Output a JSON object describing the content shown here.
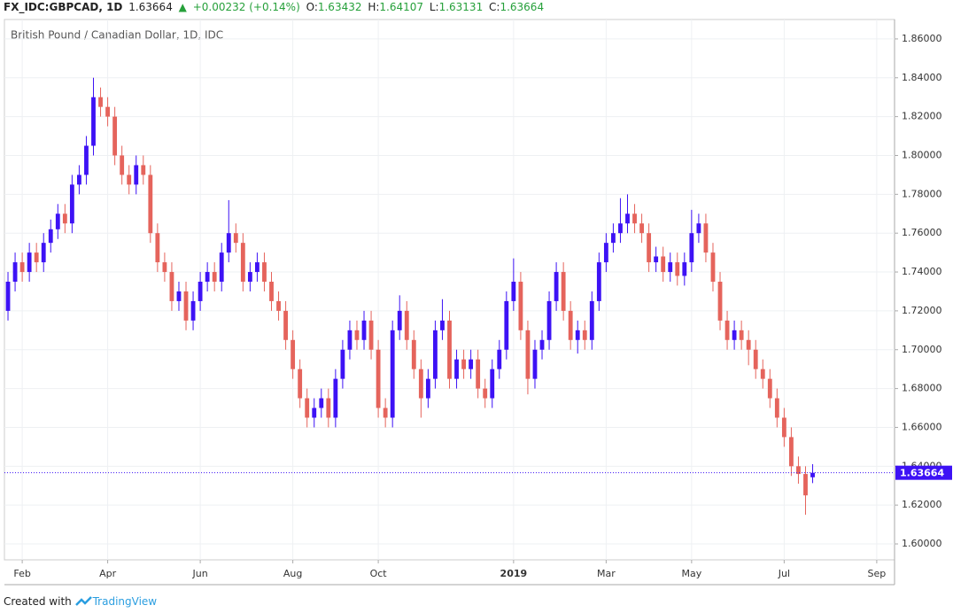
{
  "header": {
    "symbol": "FX_IDC:GBPCAD, 1D",
    "change": "+0.00232 (+0.14%)",
    "ohlc_labels": [
      "O:",
      "H:",
      "L:",
      "C:"
    ]
  },
  "footer": {
    "created_with": "Created with",
    "brand": "TradingView"
  },
  "chart_data": {
    "type": "candlestick",
    "title": "British Pound / Canadian Dollar, 1D, IDC",
    "up_color": "#3d12f5",
    "down_color": "#e5645c",
    "grid": true,
    "ylim": [
      1.5918,
      1.87
    ],
    "yticks": [
      {
        "value": 1.6,
        "label": "1.60000"
      },
      {
        "value": 1.62,
        "label": "1.62000"
      },
      {
        "value": 1.64,
        "label": "1.64000"
      },
      {
        "value": 1.66,
        "label": "1.66000"
      },
      {
        "value": 1.68,
        "label": "1.68000"
      },
      {
        "value": 1.7,
        "label": "1.70000"
      },
      {
        "value": 1.72,
        "label": "1.72000"
      },
      {
        "value": 1.74,
        "label": "1.74000"
      },
      {
        "value": 1.76,
        "label": "1.76000"
      },
      {
        "value": 1.78,
        "label": "1.78000"
      },
      {
        "value": 1.8,
        "label": "1.80000"
      },
      {
        "value": 1.82,
        "label": "1.82000"
      },
      {
        "value": 1.84,
        "label": "1.84000"
      },
      {
        "value": 1.86,
        "label": "1.86000"
      }
    ],
    "categories": [
      null,
      null,
      "Feb",
      null,
      null,
      null,
      null,
      null,
      null,
      null,
      null,
      null,
      null,
      null,
      "Apr",
      null,
      null,
      null,
      null,
      null,
      null,
      null,
      null,
      null,
      null,
      null,
      null,
      "Jun",
      null,
      null,
      null,
      null,
      null,
      null,
      null,
      null,
      null,
      null,
      null,
      null,
      "Aug",
      null,
      null,
      null,
      null,
      null,
      null,
      null,
      null,
      null,
      null,
      null,
      "Oct",
      null,
      null,
      null,
      null,
      null,
      null,
      null,
      null,
      null,
      null,
      null,
      null,
      null,
      null,
      null,
      null,
      null,
      null,
      "2019",
      null,
      null,
      null,
      null,
      null,
      null,
      null,
      null,
      null,
      null,
      null,
      null,
      "Mar",
      null,
      null,
      null,
      null,
      null,
      null,
      null,
      null,
      null,
      null,
      null,
      "May",
      null,
      null,
      null,
      null,
      null,
      null,
      null,
      null,
      null,
      null,
      null,
      null,
      "Jul",
      null,
      null,
      null,
      null,
      null,
      null,
      null,
      null,
      null,
      null,
      null,
      null,
      "Sep",
      null,
      null
    ],
    "open": [
      1.72,
      1.735,
      1.745,
      1.74,
      1.75,
      1.745,
      1.755,
      1.762,
      1.77,
      1.765,
      1.785,
      1.79,
      1.805,
      1.83,
      1.825,
      1.82,
      1.8,
      1.79,
      1.785,
      1.795,
      1.79,
      1.76,
      1.745,
      1.74,
      1.725,
      1.73,
      1.715,
      1.725,
      1.735,
      1.74,
      1.735,
      1.75,
      1.76,
      1.755,
      1.735,
      1.74,
      1.745,
      1.735,
      1.725,
      1.72,
      1.705,
      1.69,
      1.675,
      1.665,
      1.67,
      1.675,
      1.665,
      1.685,
      1.7,
      1.71,
      1.705,
      1.715,
      1.7,
      1.67,
      1.665,
      1.71,
      1.72,
      1.705,
      1.69,
      1.675,
      1.685,
      1.71,
      1.715,
      1.685,
      1.695,
      1.69,
      1.695,
      1.68,
      1.675,
      1.69,
      1.7,
      1.725,
      1.735,
      1.71,
      1.685,
      1.7,
      1.705,
      1.725,
      1.74,
      1.72,
      1.705,
      1.71,
      1.705,
      1.725,
      1.745,
      1.755,
      1.76,
      1.765,
      1.77,
      1.765,
      1.76,
      1.745,
      1.748,
      1.74,
      1.745,
      1.738,
      1.745,
      1.76,
      1.765,
      1.75,
      1.735,
      1.715,
      1.705,
      1.71,
      1.705,
      1.7,
      1.69,
      1.685,
      1.675,
      1.665,
      1.655,
      1.64,
      1.636,
      1.63432,
      null,
      null,
      null,
      null,
      null,
      null,
      null,
      null,
      null,
      null,
      null
    ],
    "high": [
      1.74,
      1.75,
      1.75,
      1.755,
      1.755,
      1.76,
      1.767,
      1.775,
      1.775,
      1.79,
      1.795,
      1.81,
      1.84,
      1.835,
      1.83,
      1.825,
      1.805,
      1.795,
      1.8,
      1.8,
      1.795,
      1.765,
      1.75,
      1.745,
      1.735,
      1.735,
      1.73,
      1.74,
      1.745,
      1.745,
      1.755,
      1.777,
      1.765,
      1.76,
      1.745,
      1.75,
      1.75,
      1.74,
      1.73,
      1.725,
      1.71,
      1.695,
      1.68,
      1.675,
      1.68,
      1.68,
      1.69,
      1.705,
      1.715,
      1.715,
      1.72,
      1.72,
      1.705,
      1.675,
      1.715,
      1.728,
      1.725,
      1.71,
      1.695,
      1.69,
      1.715,
      1.726,
      1.72,
      1.7,
      1.7,
      1.7,
      1.7,
      1.685,
      1.695,
      1.705,
      1.73,
      1.747,
      1.74,
      1.715,
      1.705,
      1.71,
      1.73,
      1.745,
      1.745,
      1.725,
      1.715,
      1.715,
      1.73,
      1.75,
      1.76,
      1.765,
      1.778,
      1.78,
      1.775,
      1.77,
      1.765,
      1.753,
      1.753,
      1.75,
      1.75,
      1.75,
      1.772,
      1.77,
      1.77,
      1.755,
      1.74,
      1.72,
      1.715,
      1.715,
      1.71,
      1.705,
      1.695,
      1.69,
      1.68,
      1.67,
      1.66,
      1.645,
      1.64,
      1.64107,
      null,
      null,
      null,
      null,
      null,
      null,
      null,
      null,
      null,
      null,
      null
    ],
    "low": [
      1.715,
      1.73,
      1.735,
      1.735,
      1.74,
      1.74,
      1.75,
      1.757,
      1.76,
      1.76,
      1.78,
      1.785,
      1.8,
      1.82,
      1.815,
      1.795,
      1.785,
      1.78,
      1.78,
      1.785,
      1.755,
      1.74,
      1.735,
      1.72,
      1.72,
      1.71,
      1.71,
      1.72,
      1.73,
      1.73,
      1.73,
      1.745,
      1.75,
      1.73,
      1.73,
      1.735,
      1.73,
      1.72,
      1.715,
      1.7,
      1.685,
      1.67,
      1.66,
      1.66,
      1.665,
      1.66,
      1.66,
      1.68,
      1.695,
      1.7,
      1.7,
      1.695,
      1.665,
      1.66,
      1.66,
      1.705,
      1.7,
      1.685,
      1.665,
      1.67,
      1.68,
      1.705,
      1.68,
      1.68,
      1.685,
      1.685,
      1.675,
      1.67,
      1.67,
      1.685,
      1.695,
      1.72,
      1.705,
      1.677,
      1.68,
      1.695,
      1.7,
      1.72,
      1.715,
      1.7,
      1.698,
      1.7,
      1.7,
      1.72,
      1.74,
      1.75,
      1.755,
      1.76,
      1.76,
      1.755,
      1.74,
      1.74,
      1.735,
      1.735,
      1.733,
      1.733,
      1.74,
      1.755,
      1.745,
      1.73,
      1.71,
      1.7,
      1.7,
      1.7,
      1.692,
      1.685,
      1.68,
      1.67,
      1.66,
      1.65,
      1.635,
      1.631,
      1.615,
      1.63131,
      null,
      null,
      null,
      null,
      null,
      null,
      null,
      null,
      null,
      null,
      null
    ],
    "close": [
      1.735,
      1.745,
      1.74,
      1.75,
      1.745,
      1.755,
      1.762,
      1.77,
      1.765,
      1.785,
      1.79,
      1.805,
      1.83,
      1.825,
      1.82,
      1.8,
      1.79,
      1.785,
      1.795,
      1.79,
      1.76,
      1.745,
      1.74,
      1.725,
      1.73,
      1.715,
      1.725,
      1.735,
      1.74,
      1.735,
      1.75,
      1.76,
      1.755,
      1.735,
      1.74,
      1.745,
      1.735,
      1.725,
      1.72,
      1.705,
      1.69,
      1.675,
      1.665,
      1.67,
      1.675,
      1.665,
      1.685,
      1.7,
      1.71,
      1.705,
      1.715,
      1.7,
      1.67,
      1.665,
      1.71,
      1.72,
      1.705,
      1.69,
      1.675,
      1.685,
      1.71,
      1.715,
      1.685,
      1.695,
      1.69,
      1.695,
      1.68,
      1.675,
      1.69,
      1.7,
      1.725,
      1.735,
      1.71,
      1.685,
      1.7,
      1.705,
      1.725,
      1.74,
      1.72,
      1.705,
      1.71,
      1.705,
      1.725,
      1.745,
      1.755,
      1.76,
      1.765,
      1.77,
      1.765,
      1.76,
      1.745,
      1.748,
      1.74,
      1.745,
      1.738,
      1.745,
      1.76,
      1.765,
      1.75,
      1.735,
      1.715,
      1.705,
      1.71,
      1.705,
      1.7,
      1.69,
      1.685,
      1.675,
      1.665,
      1.655,
      1.64,
      1.636,
      1.625,
      1.63664,
      null,
      null,
      null,
      null,
      null,
      null,
      null,
      null,
      null,
      null,
      null
    ]
  }
}
